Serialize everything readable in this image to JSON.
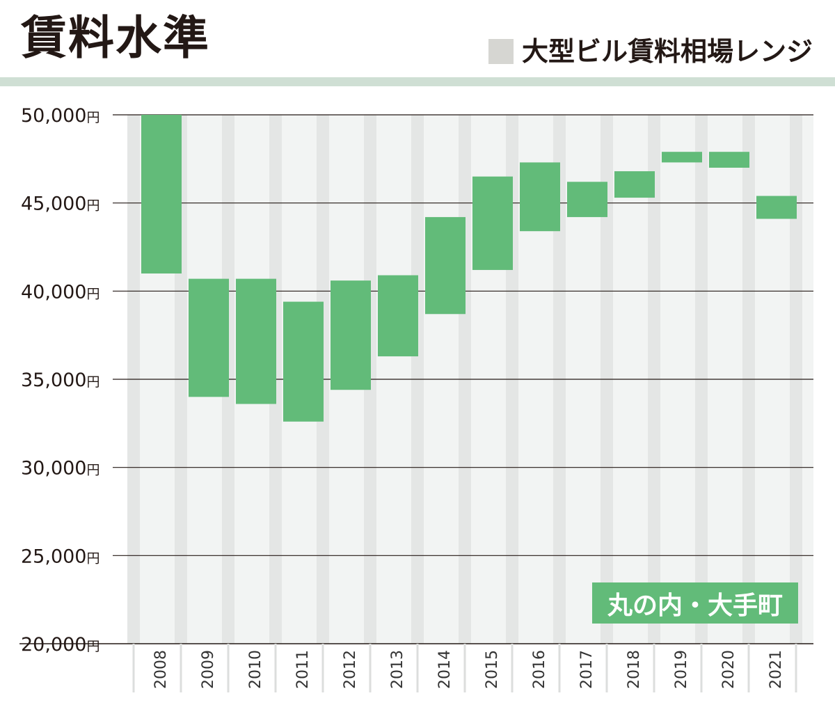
{
  "header": {
    "title": "賃料水準",
    "legend_label": "大型ビル賃料相場レンジ"
  },
  "area_label": "丸の内・大手町",
  "colors": {
    "bar": "#62bb79",
    "plot_background": "#f2f4f3",
    "column_stripe": "#e4e6e5",
    "legend_swatch": "#d6d6d2",
    "title_rule": "#cfdfd4",
    "gridline": "#231815"
  },
  "chart_data": {
    "type": "bar",
    "subtype": "floating-range",
    "title": "賃料水準",
    "legend": [
      {
        "label": "大型ビル賃料相場レンジ",
        "placement": "top-right"
      }
    ],
    "ylim": [
      20000,
      50000
    ],
    "y_ticks": [
      {
        "value": 50000,
        "label": "50,000",
        "unit": "円"
      },
      {
        "value": 45000,
        "label": "45,000",
        "unit": "円"
      },
      {
        "value": 40000,
        "label": "40,000",
        "unit": "円"
      },
      {
        "value": 35000,
        "label": "35,000",
        "unit": "円"
      },
      {
        "value": 30000,
        "label": "30,000",
        "unit": "円"
      },
      {
        "value": 25000,
        "label": "25,000",
        "unit": "円"
      },
      {
        "value": 20000,
        "label": "20,000",
        "unit": "円"
      }
    ],
    "grid": true,
    "categories": [
      "2008",
      "2009",
      "2010",
      "2011",
      "2012",
      "2013",
      "2014",
      "2015",
      "2016",
      "2017",
      "2018",
      "2019",
      "2020",
      "2021"
    ],
    "ranges": [
      {
        "low": 41000,
        "high": 50000
      },
      {
        "low": 34000,
        "high": 40700
      },
      {
        "low": 33600,
        "high": 40700
      },
      {
        "low": 32600,
        "high": 39400
      },
      {
        "low": 34400,
        "high": 40600
      },
      {
        "low": 36300,
        "high": 40900
      },
      {
        "low": 38700,
        "high": 44200
      },
      {
        "low": 41200,
        "high": 46500
      },
      {
        "low": 43400,
        "high": 47300
      },
      {
        "low": 44200,
        "high": 46200
      },
      {
        "low": 45300,
        "high": 46800
      },
      {
        "low": 47300,
        "high": 47900
      },
      {
        "low": 47000,
        "high": 47900
      },
      {
        "low": 44100,
        "high": 45400
      }
    ]
  }
}
